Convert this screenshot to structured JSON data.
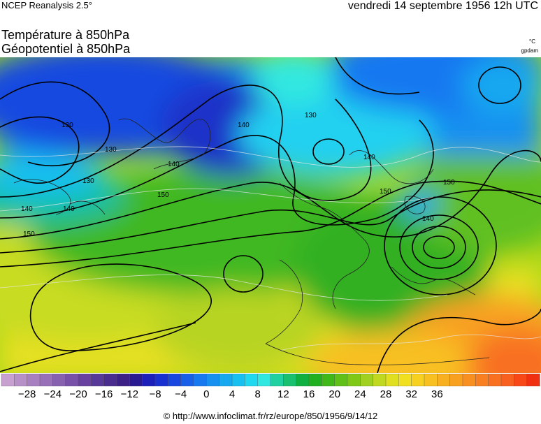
{
  "header": {
    "source": "NCEP Reanalysis 2.5°",
    "datetime": "vendredi 14 septembre 1956 12h UTC"
  },
  "titles": {
    "line1": "Température à 850hPa",
    "line2": "Géopotentiel à 850hPa"
  },
  "units": {
    "temperature": "°C",
    "geopotential": "gpdam"
  },
  "contour_labels": [
    "130",
    "130",
    "130",
    "140",
    "140",
    "140",
    "140",
    "150",
    "150",
    "150",
    "140",
    "140",
    "130",
    "150"
  ],
  "legend": {
    "min": -32,
    "max": 40,
    "step": 2,
    "tick_labels": [
      "−28",
      "−24",
      "−20",
      "−16",
      "−12",
      "−8",
      "−4",
      "0",
      "4",
      "8",
      "12",
      "16",
      "20",
      "24",
      "28",
      "32",
      "36"
    ],
    "colors": [
      "#c8a0d0",
      "#b890c8",
      "#a880c0",
      "#9870b8",
      "#8860b0",
      "#7850a8",
      "#6840a0",
      "#583898",
      "#4a2c8e",
      "#3c2086",
      "#2a1a90",
      "#1a20b8",
      "#1830d0",
      "#1848e0",
      "#1860e8",
      "#1878f0",
      "#1890f0",
      "#18a8f0",
      "#18c0f0",
      "#20d8f0",
      "#30e8e0",
      "#20d0a0",
      "#18c070",
      "#10b040",
      "#20b020",
      "#40b818",
      "#60c018",
      "#80c818",
      "#a0d020",
      "#c0d820",
      "#e0e020",
      "#f0e020",
      "#f8d020",
      "#f8c020",
      "#f8b020",
      "#f8a020",
      "#f89020",
      "#f88020",
      "#f87020",
      "#f86020",
      "#f84818",
      "#f03010"
    ]
  },
  "footer": "© http://www.infoclimat.fr/rz/europe/850/1956/9/14/12"
}
